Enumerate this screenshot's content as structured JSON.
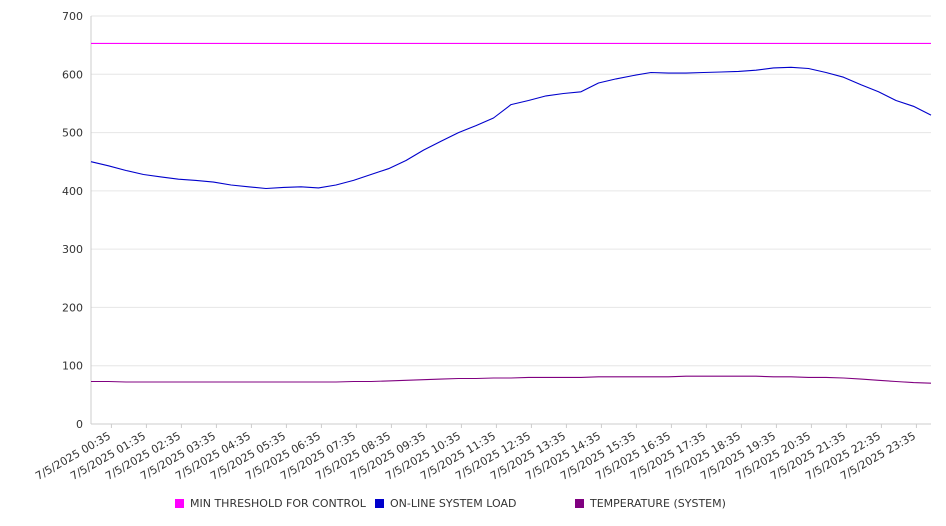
{
  "chart_data": {
    "type": "line",
    "title": "",
    "xlabel": "",
    "ylabel": "",
    "ylim": [
      0,
      700
    ],
    "y_ticks": [
      "0",
      "100",
      "200",
      "300",
      "400",
      "500",
      "600",
      "700"
    ],
    "grid": true,
    "legend_position": "bottom",
    "x_tick_labels": [
      "7/5/2025 00:35",
      "7/5/2025 01:35",
      "7/5/2025 02:35",
      "7/5/2025 03:35",
      "7/5/2025 04:35",
      "7/5/2025 05:35",
      "7/5/2025 06:35",
      "7/5/2025 07:35",
      "7/5/2025 08:35",
      "7/5/2025 09:35",
      "7/5/2025 10:35",
      "7/5/2025 11:35",
      "7/5/2025 12:35",
      "7/5/2025 13:35",
      "7/5/2025 14:35",
      "7/5/2025 15:35",
      "7/5/2025 16:35",
      "7/5/2025 17:35",
      "7/5/2025 18:35",
      "7/5/2025 19:35",
      "7/5/2025 20:35",
      "7/5/2025 21:35",
      "7/5/2025 22:35",
      "7/5/2025 23:35"
    ],
    "x": [
      "00:00",
      "00:30",
      "01:00",
      "01:30",
      "02:00",
      "02:30",
      "03:00",
      "03:30",
      "04:00",
      "04:30",
      "05:00",
      "05:30",
      "06:00",
      "06:30",
      "07:00",
      "07:30",
      "08:00",
      "08:30",
      "09:00",
      "09:30",
      "10:00",
      "10:30",
      "11:00",
      "11:30",
      "12:00",
      "12:30",
      "13:00",
      "13:30",
      "14:00",
      "14:30",
      "15:00",
      "15:30",
      "16:00",
      "16:30",
      "17:00",
      "17:30",
      "18:00",
      "18:30",
      "19:00",
      "19:30",
      "20:00",
      "20:30",
      "21:00",
      "21:30",
      "22:00",
      "22:30",
      "23:00",
      "23:30",
      "24:00"
    ],
    "series": [
      {
        "name": "MIN THRESHOLD FOR CONTROL",
        "color": "#ff00ff",
        "values": [
          653,
          653,
          653,
          653,
          653,
          653,
          653,
          653,
          653,
          653,
          653,
          653,
          653,
          653,
          653,
          653,
          653,
          653,
          653,
          653,
          653,
          653,
          653,
          653,
          653,
          653,
          653,
          653,
          653,
          653,
          653,
          653,
          653,
          653,
          653,
          653,
          653,
          653,
          653,
          653,
          653,
          653,
          653,
          653,
          653,
          653,
          653,
          653,
          653
        ]
      },
      {
        "name": "ON-LINE SYSTEM LOAD",
        "color": "#0000cc",
        "values": [
          450,
          443,
          435,
          428,
          424,
          420,
          418,
          415,
          410,
          407,
          404,
          406,
          407,
          405,
          410,
          418,
          428,
          438,
          452,
          470,
          485,
          500,
          512,
          525,
          548,
          555,
          563,
          567,
          570,
          585,
          592,
          598,
          603,
          602,
          602,
          603,
          604,
          605,
          607,
          611,
          612,
          610,
          603,
          595,
          582,
          570,
          555,
          545,
          530
        ]
      },
      {
        "name": "TEMPERATURE (SYSTEM)",
        "color": "#800080",
        "values": [
          73,
          73,
          72,
          72,
          72,
          72,
          72,
          72,
          72,
          72,
          72,
          72,
          72,
          72,
          72,
          73,
          73,
          74,
          75,
          76,
          77,
          78,
          78,
          79,
          79,
          80,
          80,
          80,
          80,
          81,
          81,
          81,
          81,
          81,
          82,
          82,
          82,
          82,
          82,
          81,
          81,
          80,
          80,
          79,
          77,
          75,
          73,
          71,
          70
        ]
      }
    ]
  }
}
